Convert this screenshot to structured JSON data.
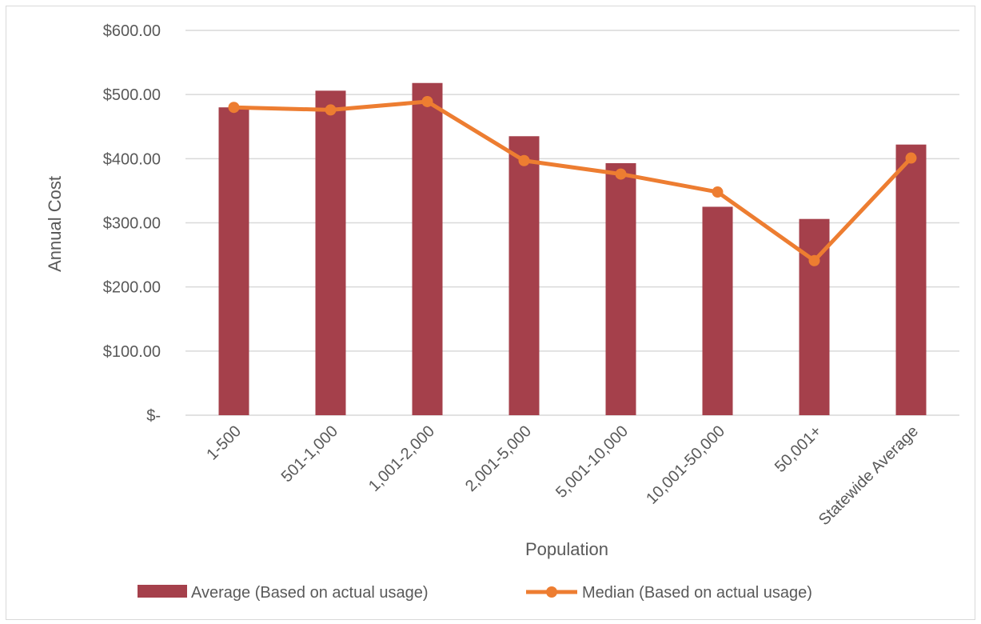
{
  "chart_data": {
    "type": "bar",
    "categories": [
      "1-500",
      "501-1,000",
      "1,001-2,000",
      "2,001-5,000",
      "5,001-10,000",
      "10,001-50,000",
      "50,001+",
      "Statewide Average"
    ],
    "series": [
      {
        "name": "Average (Based on actual usage)",
        "type": "bar",
        "color": "#a5404b",
        "values": [
          480,
          506,
          518,
          435,
          393,
          325,
          306,
          422
        ]
      },
      {
        "name": "Median (Based on actual usage)",
        "type": "line",
        "color": "#ed7d31",
        "values": [
          480,
          476,
          489,
          397,
          376,
          348,
          241,
          401
        ]
      }
    ],
    "title": "",
    "xlabel": "Population",
    "ylabel": "Annual Cost",
    "ylim": [
      0,
      600
    ],
    "ytick_labels": [
      "$-",
      "$100.00",
      "$200.00",
      "$300.00",
      "$400.00",
      "$500.00",
      "$600.00"
    ],
    "grid": true,
    "legend_position": "bottom"
  }
}
